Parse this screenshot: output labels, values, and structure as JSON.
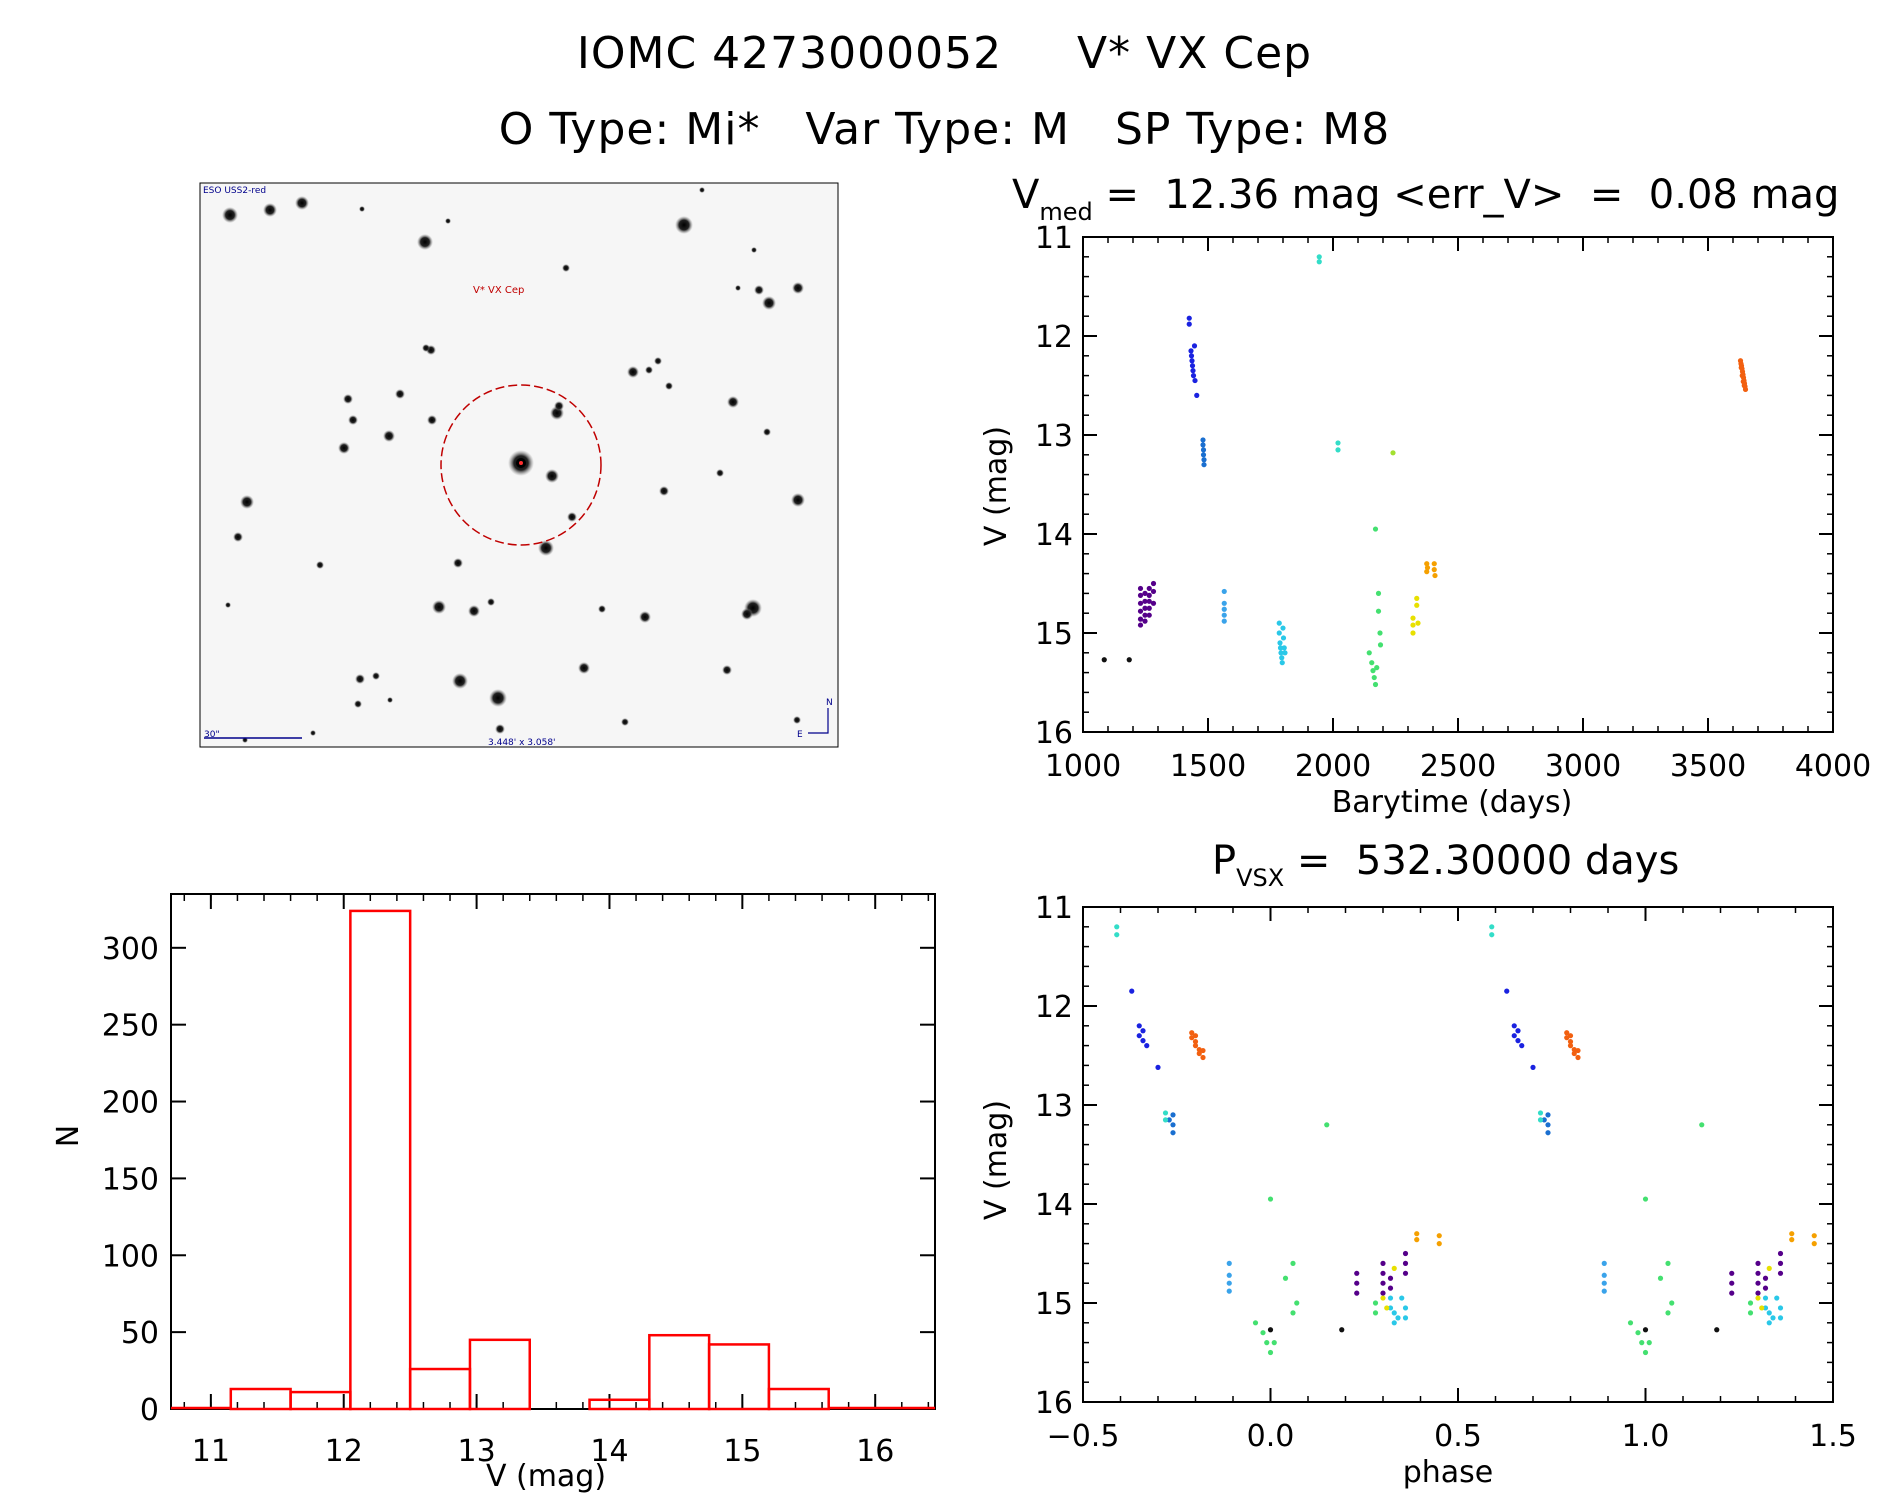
{
  "header": {
    "title_line1": "IOMC 4273000052     V* VX Cep",
    "title_line2": "O Type: Mi*   Var Type: M   SP Type: M8"
  },
  "sky_image": {
    "survey_label": "ESO USS2-red",
    "target_label": "V* VX Cep",
    "scale_label": "30\"",
    "fov_label": "3.448' x 3.058'",
    "compass_north": "N",
    "compass_east": "E"
  },
  "colors": {
    "histogram": "#ff0000",
    "circle": "#c00000"
  },
  "chart_data": [
    {
      "id": "lightcurve",
      "type": "scatter",
      "title_main": "V",
      "title_sub": "med",
      "title_rest": " =  12.36 mag <err_V>  =  0.08 mag",
      "xlabel": "Barytime (days)",
      "ylabel": "V (mag)",
      "xlim": [
        1000,
        4000
      ],
      "ylim": [
        16,
        11
      ],
      "xticks": [
        1000,
        1500,
        2000,
        2500,
        3000,
        3500,
        4000
      ],
      "yticks": [
        11,
        12,
        13,
        14,
        15,
        16
      ],
      "series": [
        {
          "name": "c1",
          "color": "#111111",
          "points": [
            [
              1085,
              15.27
            ],
            [
              1185,
              15.27
            ]
          ]
        },
        {
          "name": "c2",
          "color": "#55008a",
          "points": [
            [
              1230,
              14.55
            ],
            [
              1230,
              14.62
            ],
            [
              1230,
              14.7
            ],
            [
              1230,
              14.78
            ],
            [
              1230,
              14.86
            ],
            [
              1230,
              14.92
            ],
            [
              1248,
              14.6
            ],
            [
              1248,
              14.68
            ],
            [
              1248,
              14.75
            ],
            [
              1248,
              14.82
            ],
            [
              1248,
              14.88
            ],
            [
              1265,
              14.55
            ],
            [
              1265,
              14.62
            ],
            [
              1265,
              14.68
            ],
            [
              1265,
              14.75
            ],
            [
              1265,
              14.82
            ],
            [
              1282,
              14.5
            ],
            [
              1282,
              14.58
            ],
            [
              1282,
              14.7
            ]
          ]
        },
        {
          "name": "c3",
          "color": "#1a22e0",
          "points": [
            [
              1425,
              11.82
            ],
            [
              1425,
              11.88
            ],
            [
              1432,
              12.15
            ],
            [
              1434,
              12.2
            ],
            [
              1436,
              12.25
            ],
            [
              1438,
              12.3
            ],
            [
              1440,
              12.35
            ],
            [
              1442,
              12.4
            ],
            [
              1446,
              12.1
            ],
            [
              1448,
              12.45
            ],
            [
              1455,
              12.6
            ]
          ]
        },
        {
          "name": "c4",
          "color": "#1a6fd0",
          "points": [
            [
              1480,
              13.05
            ],
            [
              1480,
              13.1
            ],
            [
              1482,
              13.15
            ],
            [
              1482,
              13.2
            ],
            [
              1484,
              13.25
            ],
            [
              1484,
              13.3
            ]
          ]
        },
        {
          "name": "c5",
          "color": "#3aa3ea",
          "points": [
            [
              1565,
              14.58
            ],
            [
              1565,
              14.7
            ],
            [
              1565,
              14.76
            ],
            [
              1565,
              14.82
            ],
            [
              1565,
              14.88
            ]
          ]
        },
        {
          "name": "c6",
          "color": "#2ac8e8",
          "points": [
            [
              1785,
              14.9
            ],
            [
              1785,
              15.0
            ],
            [
              1788,
              15.1
            ],
            [
              1790,
              15.15
            ],
            [
              1792,
              15.2
            ],
            [
              1795,
              15.25
            ],
            [
              1797,
              15.3
            ],
            [
              1800,
              14.95
            ],
            [
              1802,
              15.05
            ],
            [
              1805,
              15.15
            ],
            [
              1808,
              15.2
            ]
          ]
        },
        {
          "name": "c7",
          "color": "#33ddc8",
          "points": [
            [
              1945,
              11.2
            ],
            [
              1945,
              11.25
            ],
            [
              2020,
              13.08
            ],
            [
              2020,
              13.15
            ]
          ]
        },
        {
          "name": "c8",
          "color": "#44e070",
          "points": [
            [
              2145,
              15.2
            ],
            [
              2155,
              15.3
            ],
            [
              2160,
              15.38
            ],
            [
              2165,
              15.45
            ],
            [
              2170,
              15.52
            ],
            [
              2175,
              15.35
            ],
            [
              2170,
              13.95
            ],
            [
              2182,
              14.6
            ],
            [
              2182,
              14.78
            ],
            [
              2188,
              15.0
            ],
            [
              2190,
              15.12
            ]
          ]
        },
        {
          "name": "c9",
          "color": "#a3e030",
          "points": [
            [
              2240,
              13.18
            ]
          ]
        },
        {
          "name": "c10",
          "color": "#e8e000",
          "points": [
            [
              2320,
              14.85
            ],
            [
              2320,
              14.92
            ],
            [
              2320,
              15.0
            ],
            [
              2335,
              14.65
            ],
            [
              2335,
              14.72
            ],
            [
              2340,
              14.9
            ]
          ]
        },
        {
          "name": "c11",
          "color": "#f5a000",
          "points": [
            [
              2375,
              14.3
            ],
            [
              2375,
              14.38
            ],
            [
              2378,
              14.34
            ],
            [
              2405,
              14.3
            ],
            [
              2405,
              14.36
            ],
            [
              2408,
              14.42
            ]
          ]
        },
        {
          "name": "c12",
          "color": "#f26010",
          "points": [
            [
              3630,
              12.25
            ],
            [
              3632,
              12.28
            ],
            [
              3634,
              12.3
            ],
            [
              3636,
              12.33
            ],
            [
              3638,
              12.36
            ],
            [
              3640,
              12.39
            ],
            [
              3642,
              12.42
            ],
            [
              3644,
              12.45
            ],
            [
              3646,
              12.48
            ],
            [
              3648,
              12.51
            ],
            [
              3650,
              12.54
            ],
            [
              3633,
              12.32
            ],
            [
              3637,
              12.4
            ],
            [
              3641,
              12.46
            ],
            [
              3645,
              12.5
            ]
          ]
        }
      ]
    },
    {
      "id": "phased",
      "type": "scatter",
      "title_main": "P",
      "title_sub": "VSX",
      "title_rest": " =  532.30000 days",
      "xlabel": "phase",
      "ylabel": "V (mag)",
      "xlim": [
        -0.5,
        1.5
      ],
      "ylim": [
        16,
        11
      ],
      "xticks": [
        -0.5,
        0.0,
        0.5,
        1.0,
        1.5
      ],
      "xtick_labels": [
        "−0.5",
        "0.0",
        "0.5",
        "1.0",
        "1.5"
      ],
      "yticks": [
        11,
        12,
        13,
        14,
        15,
        16
      ],
      "series": [
        {
          "name": "c1",
          "color": "#111111",
          "points": [
            [
              0.0,
              15.27
            ],
            [
              0.19,
              15.27
            ]
          ]
        },
        {
          "name": "c2",
          "color": "#55008a",
          "points": [
            [
              0.23,
              14.7
            ],
            [
              0.23,
              14.8
            ],
            [
              0.23,
              14.9
            ],
            [
              0.3,
              14.6
            ],
            [
              0.3,
              14.7
            ],
            [
              0.3,
              14.8
            ],
            [
              0.3,
              14.9
            ],
            [
              0.32,
              14.75
            ],
            [
              0.32,
              14.85
            ],
            [
              0.36,
              14.5
            ],
            [
              0.36,
              14.6
            ],
            [
              0.36,
              14.7
            ]
          ]
        },
        {
          "name": "c3",
          "color": "#1a22e0",
          "points": [
            [
              -0.37,
              11.85
            ],
            [
              -0.35,
              12.2
            ],
            [
              -0.35,
              12.3
            ],
            [
              -0.34,
              12.25
            ],
            [
              -0.34,
              12.35
            ],
            [
              -0.33,
              12.4
            ],
            [
              -0.3,
              12.62
            ]
          ]
        },
        {
          "name": "c4",
          "color": "#1a6fd0",
          "points": [
            [
              -0.26,
              13.1
            ],
            [
              -0.26,
              13.2
            ],
            [
              -0.26,
              13.28
            ],
            [
              -0.27,
              13.15
            ]
          ]
        },
        {
          "name": "c5",
          "color": "#3aa3ea",
          "points": [
            [
              -0.11,
              14.6
            ],
            [
              -0.11,
              14.72
            ],
            [
              -0.11,
              14.8
            ],
            [
              -0.11,
              14.88
            ]
          ]
        },
        {
          "name": "c6",
          "color": "#2ac8e8",
          "points": [
            [
              0.32,
              14.95
            ],
            [
              0.32,
              15.05
            ],
            [
              0.33,
              15.1
            ],
            [
              0.33,
              15.2
            ],
            [
              0.34,
              15.15
            ],
            [
              0.35,
              14.95
            ],
            [
              0.36,
              15.05
            ],
            [
              0.36,
              15.15
            ]
          ]
        },
        {
          "name": "c7",
          "color": "#33ddc8",
          "points": [
            [
              -0.41,
              11.2
            ],
            [
              -0.41,
              11.28
            ],
            [
              -0.28,
              13.08
            ],
            [
              -0.28,
              13.15
            ]
          ]
        },
        {
          "name": "c8",
          "color": "#44e070",
          "points": [
            [
              -0.04,
              15.2
            ],
            [
              -0.02,
              15.3
            ],
            [
              -0.01,
              15.4
            ],
            [
              0.0,
              15.5
            ],
            [
              0.01,
              15.4
            ],
            [
              0.0,
              13.95
            ],
            [
              0.04,
              14.75
            ],
            [
              0.06,
              14.6
            ],
            [
              0.07,
              15.0
            ],
            [
              0.06,
              15.1
            ],
            [
              0.15,
              13.2
            ],
            [
              0.28,
              15.0
            ],
            [
              0.28,
              15.1
            ]
          ]
        },
        {
          "name": "c10",
          "color": "#e8e000",
          "points": [
            [
              0.3,
              14.95
            ],
            [
              0.31,
              15.05
            ],
            [
              0.33,
              14.65
            ]
          ]
        },
        {
          "name": "c11",
          "color": "#f5a000",
          "points": [
            [
              0.39,
              14.3
            ],
            [
              0.39,
              14.36
            ],
            [
              0.45,
              14.32
            ],
            [
              0.45,
              14.4
            ]
          ]
        },
        {
          "name": "c12",
          "color": "#f26010",
          "points": [
            [
              -0.21,
              12.27
            ],
            [
              -0.21,
              12.32
            ],
            [
              -0.2,
              12.36
            ],
            [
              -0.2,
              12.4
            ],
            [
              -0.19,
              12.44
            ],
            [
              -0.19,
              12.48
            ],
            [
              -0.18,
              12.52
            ],
            [
              -0.2,
              12.3
            ],
            [
              -0.18,
              12.45
            ]
          ]
        }
      ]
    },
    {
      "id": "histogram",
      "type": "bar",
      "xlabel": "V (mag)",
      "ylabel": "N",
      "xlim": [
        10.7,
        16.45
      ],
      "ylim": [
        0,
        335
      ],
      "xticks": [
        11,
        12,
        13,
        14,
        15,
        16
      ],
      "yticks": [
        0,
        50,
        100,
        150,
        200,
        250,
        300
      ],
      "bin_edges": [
        11.15,
        11.6,
        12.05,
        12.5,
        12.95,
        13.4,
        13.85,
        14.3,
        14.75,
        15.2,
        15.65
      ],
      "values": [
        13,
        11,
        324,
        26,
        45,
        0,
        6,
        48,
        42,
        13
      ]
    }
  ]
}
